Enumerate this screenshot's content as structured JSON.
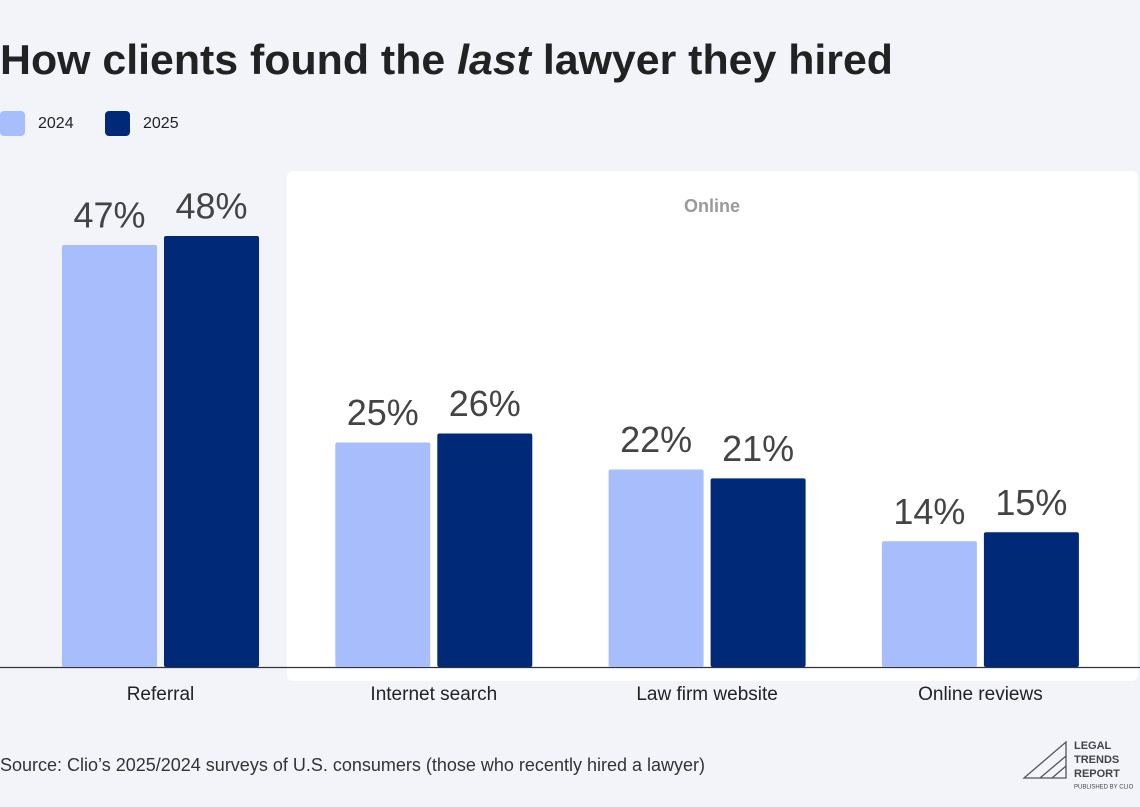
{
  "chart_data": {
    "type": "bar",
    "title": [
      "How clients found the ",
      "last",
      " lawyer they hired"
    ],
    "categories": [
      "Referral",
      "Internet search",
      "Law firm website",
      "Online reviews"
    ],
    "series": [
      {
        "name": "2024",
        "color": "#a8befc",
        "values": [
          47,
          25,
          22,
          14
        ],
        "value_labels": [
          "47%",
          "25%",
          "22%",
          "14%"
        ]
      },
      {
        "name": "2025",
        "color": "#002a78",
        "values": [
          48,
          26,
          21,
          15
        ],
        "value_labels": [
          "48%",
          "26%",
          "21%",
          "15%"
        ]
      }
    ],
    "group_label": "Online",
    "source": "Source: Clio’s 2025/2024 surveys of U.S. consumers (those who recently hired a lawyer)"
  },
  "logo": {
    "lines": [
      "LEGAL",
      "TRENDS",
      "REPORT"
    ],
    "tagline": "PUBLISHED BY CLIO"
  }
}
